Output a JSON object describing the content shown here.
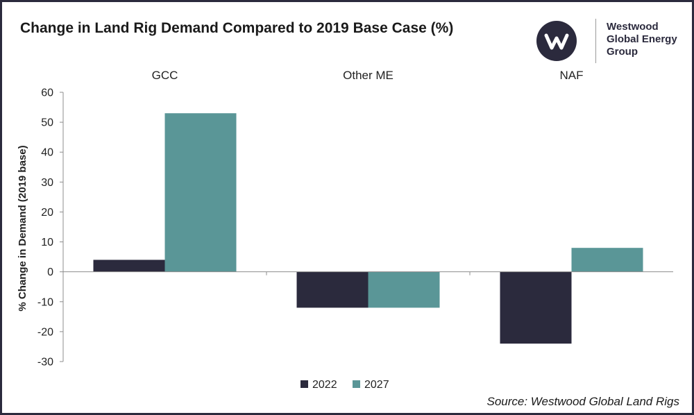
{
  "title": "Change in Land Rig Demand Compared to 2019 Base Case (%)",
  "logo": {
    "icon": "westwood-w-logo-icon",
    "lines": [
      "Westwood",
      "Global Energy",
      "Group"
    ]
  },
  "source": "Source: Westwood Global Land Rigs",
  "colors": {
    "s2022": "#2b2a3d",
    "s2027": "#5a9697",
    "frame": "#2b2a3d"
  },
  "chart_data": {
    "type": "bar",
    "title": "Change in Land Rig Demand Compared to 2019 Base Case (%)",
    "categories": [
      "GCC",
      "Other ME",
      "NAF"
    ],
    "series": [
      {
        "name": "2022",
        "values": [
          4,
          -12,
          -24
        ]
      },
      {
        "name": "2027",
        "values": [
          53,
          -12,
          8
        ]
      }
    ],
    "ylabel": "% Change in Demand (2019 base)",
    "xlabel": "",
    "ylim": [
      -30,
      60
    ],
    "yticks": [
      60,
      50,
      40,
      30,
      20,
      10,
      0,
      -10,
      -20,
      -30
    ],
    "category_label_position": "top",
    "legend_position": "bottom-center",
    "grid": false
  }
}
